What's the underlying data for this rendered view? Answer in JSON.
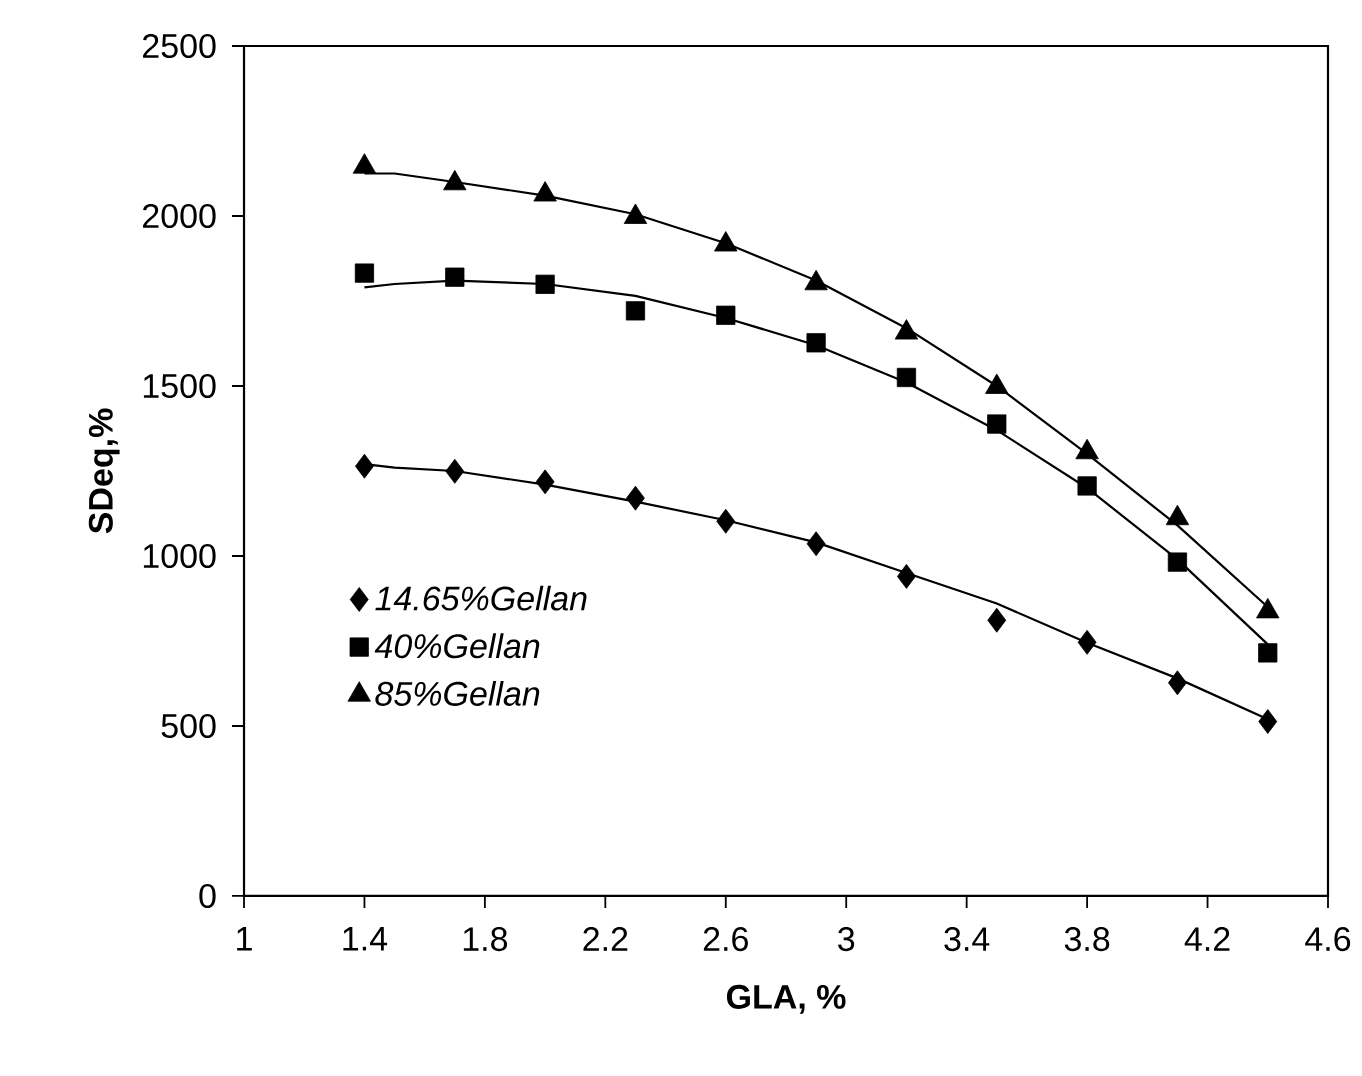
{
  "chart_data": {
    "type": "scatter",
    "xlabel": "GLA, %",
    "ylabel": "SDeq,%",
    "xlim": [
      1,
      4.6
    ],
    "xticks": [
      1,
      1.4,
      1.8,
      2.2,
      2.6,
      3,
      3.4,
      3.8,
      4.2,
      4.6
    ],
    "ylim": [
      0,
      2500
    ],
    "yticks": [
      0,
      500,
      1000,
      1500,
      2000,
      2500
    ],
    "grid": false,
    "legend": "left",
    "series": [
      {
        "name": "14.65%Gellan",
        "marker": "diamond",
        "color": "#000000",
        "x": [
          1.4,
          1.7,
          2.0,
          2.3,
          2.6,
          2.9,
          3.2,
          3.5,
          3.8,
          4.1,
          4.4
        ],
        "values": [
          1264,
          1249,
          1218,
          1170,
          1102,
          1036,
          940,
          811,
          746,
          627,
          513
        ]
      },
      {
        "name": "40%Gellan",
        "marker": "square",
        "color": "#000000",
        "x": [
          1.4,
          1.7,
          2.0,
          2.3,
          2.6,
          2.9,
          3.2,
          3.5,
          3.8,
          4.1,
          4.4
        ],
        "values": [
          1832,
          1820,
          1799,
          1721,
          1708,
          1627,
          1525,
          1388,
          1206,
          982,
          715
        ]
      },
      {
        "name": "85%Gellan",
        "marker": "triangle",
        "color": "#000000",
        "x": [
          1.4,
          1.7,
          2.0,
          2.3,
          2.6,
          2.9,
          3.2,
          3.5,
          3.8,
          4.1,
          4.4
        ],
        "values": [
          2145,
          2096,
          2063,
          1997,
          1916,
          1802,
          1657,
          1497,
          1305,
          1111,
          837
        ]
      },
      {
        "type": "line",
        "marker": "none",
        "color": "#000000",
        "x": [
          1.4,
          1.5,
          1.7,
          2.0,
          2.3,
          2.6,
          2.9,
          3.2,
          3.5,
          3.8,
          4.1,
          4.4
        ],
        "values": [
          1270,
          1260,
          1250,
          1210,
          1160,
          1105,
          1040,
          950,
          860,
          745,
          640,
          520
        ]
      },
      {
        "type": "line",
        "marker": "none",
        "color": "#000000",
        "x": [
          1.4,
          1.5,
          1.7,
          2.0,
          2.3,
          2.6,
          2.9,
          3.2,
          3.5,
          3.8,
          4.1,
          4.4
        ],
        "values": [
          1790,
          1800,
          1810,
          1800,
          1765,
          1700,
          1620,
          1510,
          1370,
          1200,
          990,
          740
        ]
      },
      {
        "type": "line",
        "marker": "none",
        "color": "#000000",
        "x": [
          1.4,
          1.5,
          1.7,
          2.0,
          2.3,
          2.6,
          2.9,
          3.2,
          3.5,
          3.8,
          4.1,
          4.4
        ],
        "values": [
          2125,
          2125,
          2100,
          2060,
          2005,
          1920,
          1810,
          1670,
          1500,
          1300,
          1090,
          850
        ]
      }
    ]
  }
}
